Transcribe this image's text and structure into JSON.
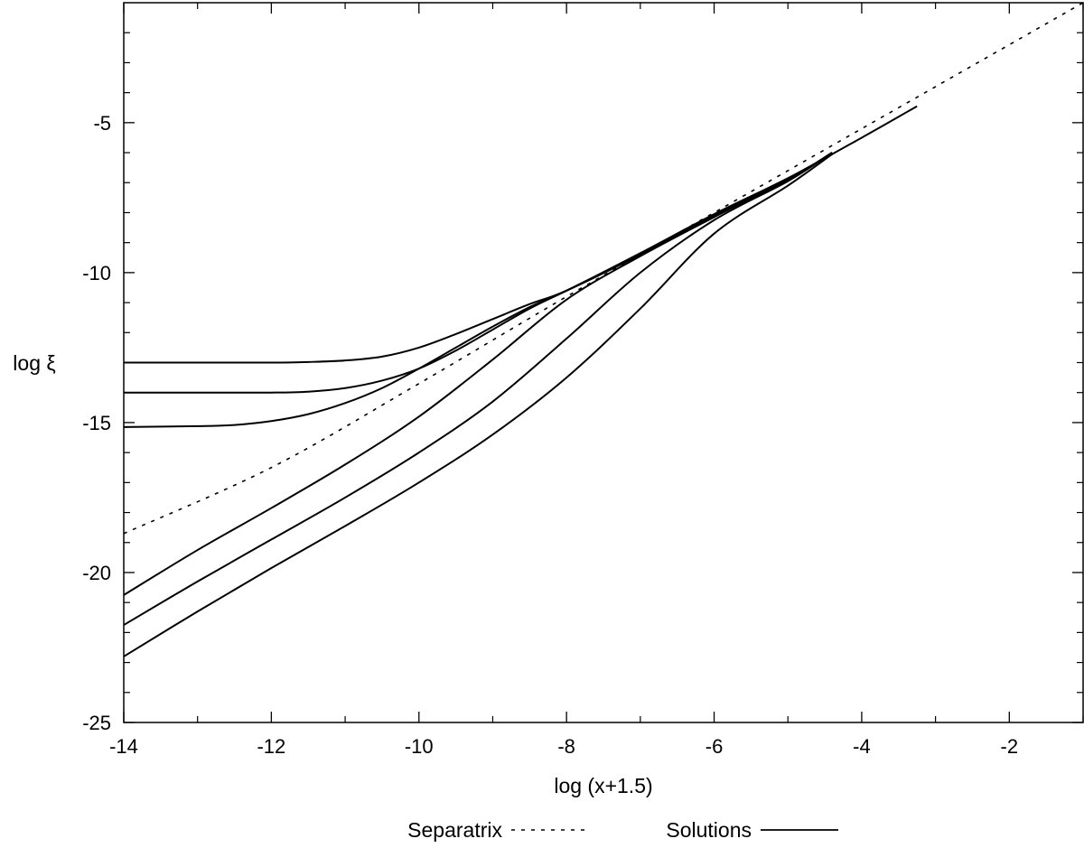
{
  "chart_data": {
    "type": "line",
    "title": "",
    "xlabel": "log (x+1.5)",
    "ylabel": "log ξ",
    "xlim": [
      -14,
      -1
    ],
    "ylim": [
      -25,
      -1
    ],
    "xticks": [
      -14,
      -12,
      -10,
      -8,
      -6,
      -4,
      -2
    ],
    "yticks": [
      -25,
      -20,
      -15,
      -10,
      -5
    ],
    "xtick_labels": [
      "-14",
      "-12",
      "-10",
      "-8",
      "-6",
      "-4",
      "-2"
    ],
    "ytick_labels": [
      "-25",
      "-20",
      "-15",
      "-10",
      "-5"
    ],
    "grid": false,
    "legend_position": "bottom-center",
    "legend": [
      {
        "label": "Separatrix",
        "style": "dotted"
      },
      {
        "label": "Solutions",
        "style": "solid"
      }
    ],
    "series": [
      {
        "legend": "Separatrix",
        "style": "dotted",
        "x": [
          -14,
          -12,
          -10,
          -8,
          -6,
          -4,
          -2,
          -1
        ],
        "y": [
          -18.7,
          -16.5,
          -13.7,
          -10.8,
          -8.0,
          -5.2,
          -2.4,
          -1.0
        ]
      },
      {
        "legend": "Solutions",
        "style": "solid",
        "x": [
          -14,
          -13,
          -12,
          -11.5,
          -11,
          -10.5,
          -10,
          -9.5,
          -9,
          -8.5,
          -8,
          -7,
          -6,
          -5,
          -4.4
        ],
        "y": [
          -13.0,
          -13.0,
          -13.0,
          -12.98,
          -12.93,
          -12.8,
          -12.5,
          -12.05,
          -11.55,
          -11.05,
          -10.6,
          -9.4,
          -8.1,
          -6.9,
          -6.0
        ]
      },
      {
        "legend": "Solutions",
        "style": "solid",
        "x": [
          -14,
          -13,
          -12,
          -11.5,
          -11,
          -10.5,
          -10,
          -9.5,
          -9,
          -8.5,
          -8,
          -7,
          -6,
          -5,
          -4.4
        ],
        "y": [
          -14.0,
          -14.0,
          -14.0,
          -13.97,
          -13.85,
          -13.6,
          -13.2,
          -12.6,
          -11.9,
          -11.2,
          -10.6,
          -9.4,
          -8.1,
          -6.9,
          -6.0
        ]
      },
      {
        "legend": "Solutions",
        "style": "solid",
        "x": [
          -14,
          -13,
          -12.5,
          -12,
          -11.5,
          -11,
          -10.5,
          -10,
          -9.5,
          -9,
          -8.5,
          -8,
          -7,
          -6,
          -5,
          -4,
          -3.25
        ],
        "y": [
          -15.15,
          -15.12,
          -15.08,
          -14.95,
          -14.72,
          -14.35,
          -13.85,
          -13.2,
          -12.5,
          -11.8,
          -11.15,
          -10.6,
          -9.35,
          -8.05,
          -6.85,
          -5.5,
          -4.45
        ]
      },
      {
        "legend": "Solutions",
        "style": "solid",
        "x": [
          -14,
          -13,
          -12,
          -11,
          -10,
          -9,
          -8,
          -7,
          -6,
          -5,
          -4.4
        ],
        "y": [
          -20.75,
          -19.25,
          -17.85,
          -16.4,
          -14.8,
          -12.9,
          -10.9,
          -9.45,
          -8.15,
          -6.9,
          -6.0
        ]
      },
      {
        "legend": "Solutions",
        "style": "solid",
        "x": [
          -14,
          -13,
          -12,
          -11,
          -10,
          -9,
          -8,
          -7,
          -6,
          -5,
          -4.4
        ],
        "y": [
          -21.75,
          -20.3,
          -18.9,
          -17.5,
          -16.0,
          -14.3,
          -12.2,
          -10.0,
          -8.25,
          -6.95,
          -6.0
        ]
      },
      {
        "legend": "Solutions",
        "style": "solid",
        "x": [
          -14,
          -13,
          -12,
          -11,
          -10,
          -9,
          -8,
          -7,
          -6,
          -5,
          -4.4
        ],
        "y": [
          -22.8,
          -21.3,
          -19.85,
          -18.45,
          -17.0,
          -15.4,
          -13.5,
          -11.2,
          -8.7,
          -7.1,
          -6.05
        ]
      }
    ]
  }
}
